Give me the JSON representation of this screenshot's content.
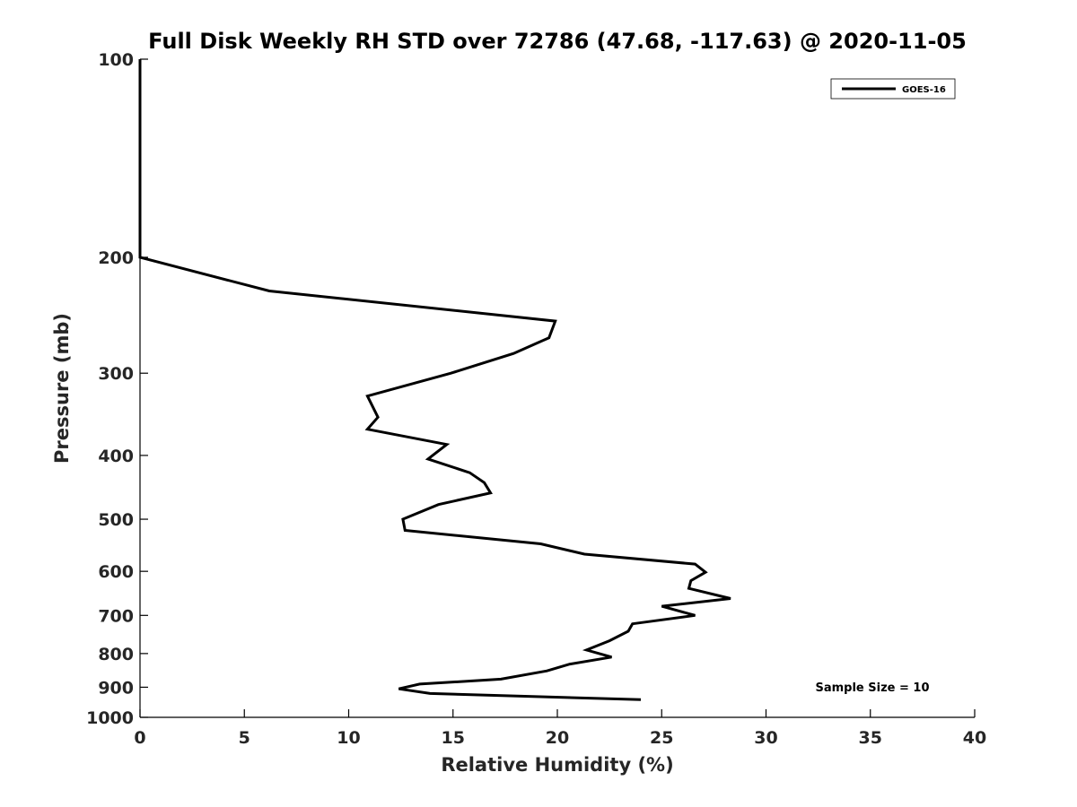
{
  "chart_data": {
    "type": "line",
    "title": "Full Disk Weekly RH STD over 72786 (47.68, -117.63) @ 2020-11-05",
    "xlabel": "Relative Humidity (%)",
    "ylabel": "Pressure (mb)",
    "xlim": [
      0,
      40
    ],
    "ylim": [
      100,
      1000
    ],
    "y_scale": "log",
    "y_reversed": true,
    "grid": false,
    "legend_placement": "top-right",
    "x_ticks": [
      0,
      5,
      10,
      15,
      20,
      25,
      30,
      35,
      40
    ],
    "x_tick_labels": [
      "0",
      "5",
      "10",
      "15",
      "20",
      "25",
      "30",
      "35",
      "40"
    ],
    "y_ticks": [
      100,
      200,
      300,
      400,
      500,
      600,
      700,
      800,
      900,
      1000
    ],
    "y_tick_labels": [
      "100",
      "200",
      "300",
      "400",
      "500",
      "600",
      "700",
      "800",
      "900",
      "1000"
    ],
    "series": [
      {
        "name": "GOES-16",
        "color": "#000000",
        "points": [
          {
            "x": 0.0,
            "y": 100
          },
          {
            "x": 0.0,
            "y": 200
          },
          {
            "x": 6.2,
            "y": 225
          },
          {
            "x": 19.9,
            "y": 250
          },
          {
            "x": 19.6,
            "y": 265
          },
          {
            "x": 17.9,
            "y": 280
          },
          {
            "x": 14.9,
            "y": 300
          },
          {
            "x": 10.9,
            "y": 325
          },
          {
            "x": 11.4,
            "y": 350
          },
          {
            "x": 10.9,
            "y": 365
          },
          {
            "x": 14.7,
            "y": 385
          },
          {
            "x": 13.8,
            "y": 405
          },
          {
            "x": 15.8,
            "y": 425
          },
          {
            "x": 16.5,
            "y": 440
          },
          {
            "x": 16.8,
            "y": 456
          },
          {
            "x": 14.3,
            "y": 475
          },
          {
            "x": 12.6,
            "y": 500
          },
          {
            "x": 12.7,
            "y": 520
          },
          {
            "x": 19.2,
            "y": 545
          },
          {
            "x": 21.3,
            "y": 565
          },
          {
            "x": 26.6,
            "y": 585
          },
          {
            "x": 27.1,
            "y": 602
          },
          {
            "x": 26.4,
            "y": 620
          },
          {
            "x": 26.3,
            "y": 637
          },
          {
            "x": 28.3,
            "y": 660
          },
          {
            "x": 25.0,
            "y": 678
          },
          {
            "x": 26.6,
            "y": 700
          },
          {
            "x": 23.6,
            "y": 721
          },
          {
            "x": 23.4,
            "y": 740
          },
          {
            "x": 22.5,
            "y": 765
          },
          {
            "x": 21.4,
            "y": 790
          },
          {
            "x": 22.6,
            "y": 810
          },
          {
            "x": 20.6,
            "y": 830
          },
          {
            "x": 19.5,
            "y": 850
          },
          {
            "x": 17.3,
            "y": 875
          },
          {
            "x": 13.4,
            "y": 890
          },
          {
            "x": 12.4,
            "y": 905
          },
          {
            "x": 13.9,
            "y": 920
          },
          {
            "x": 24.0,
            "y": 940
          }
        ]
      }
    ],
    "annotation": "Sample Size = 10"
  }
}
